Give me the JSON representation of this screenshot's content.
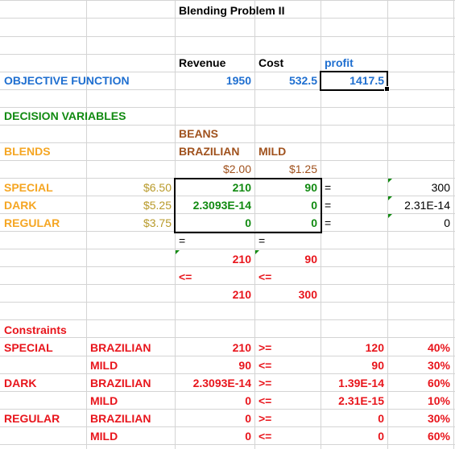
{
  "title": "Blending Problem II",
  "headers": {
    "revenue": "Revenue",
    "cost": "Cost",
    "profit": "profit"
  },
  "objective": {
    "label": "OBJECTIVE FUNCTION",
    "revenue": "1950",
    "cost": "532.5",
    "profit": "1417.5"
  },
  "decision_variables": "DECISION VARIABLES",
  "beans": "BEANS",
  "blends": "BLENDS",
  "bean_types": {
    "brazilian": "BRAZILIAN",
    "mild": "MILD"
  },
  "bean_prices": {
    "brazilian": "$2.00",
    "mild": "$1.25"
  },
  "blend_rows": [
    {
      "name": "SPECIAL",
      "price": "$6.50",
      "brazilian": "210",
      "mild": "90",
      "eq": "=",
      "total": "300"
    },
    {
      "name": "DARK",
      "price": "$5.25",
      "brazilian": "2.3093E-14",
      "mild": "0",
      "eq": "=",
      "total": "2.31E-14"
    },
    {
      "name": "REGULAR",
      "price": "$3.75",
      "brazilian": "0",
      "mild": "0",
      "eq": "=",
      "total": "0"
    }
  ],
  "supply": {
    "eq_brazilian": "=",
    "eq_mild": "=",
    "used_brazilian": "210",
    "used_mild": "90",
    "le_brazilian": "<=",
    "le_mild": "<=",
    "limit_brazilian": "210",
    "limit_mild": "300"
  },
  "constraints_label": "Constraints",
  "constraints": [
    {
      "blend": "SPECIAL",
      "bean": "BRAZILIAN",
      "value": "210",
      "op": ">=",
      "rhs": "120",
      "pct": "40%"
    },
    {
      "blend": "",
      "bean": "MILD",
      "value": "90",
      "op": "<=",
      "rhs": "90",
      "pct": "30%"
    },
    {
      "blend": "DARK",
      "bean": "BRAZILIAN",
      "value": "2.3093E-14",
      "op": ">=",
      "rhs": "1.39E-14",
      "pct": "60%"
    },
    {
      "blend": "",
      "bean": "MILD",
      "value": "0",
      "op": "<=",
      "rhs": "2.31E-15",
      "pct": "10%"
    },
    {
      "blend": "REGULAR",
      "bean": "BRAZILIAN",
      "value": "0",
      "op": ">=",
      "rhs": "0",
      "pct": "30%"
    },
    {
      "blend": "",
      "bean": "MILD",
      "value": "0",
      "op": "<=",
      "rhs": "0",
      "pct": "60%"
    }
  ],
  "colors": {
    "blue": "#1f6fd0",
    "green": "#118a11",
    "orange": "#f5a623",
    "brown": "#a0521e",
    "red": "#e8151c",
    "olive": "#b89a2a",
    "dark": "#000000",
    "gridline": "#d4d4d4"
  }
}
